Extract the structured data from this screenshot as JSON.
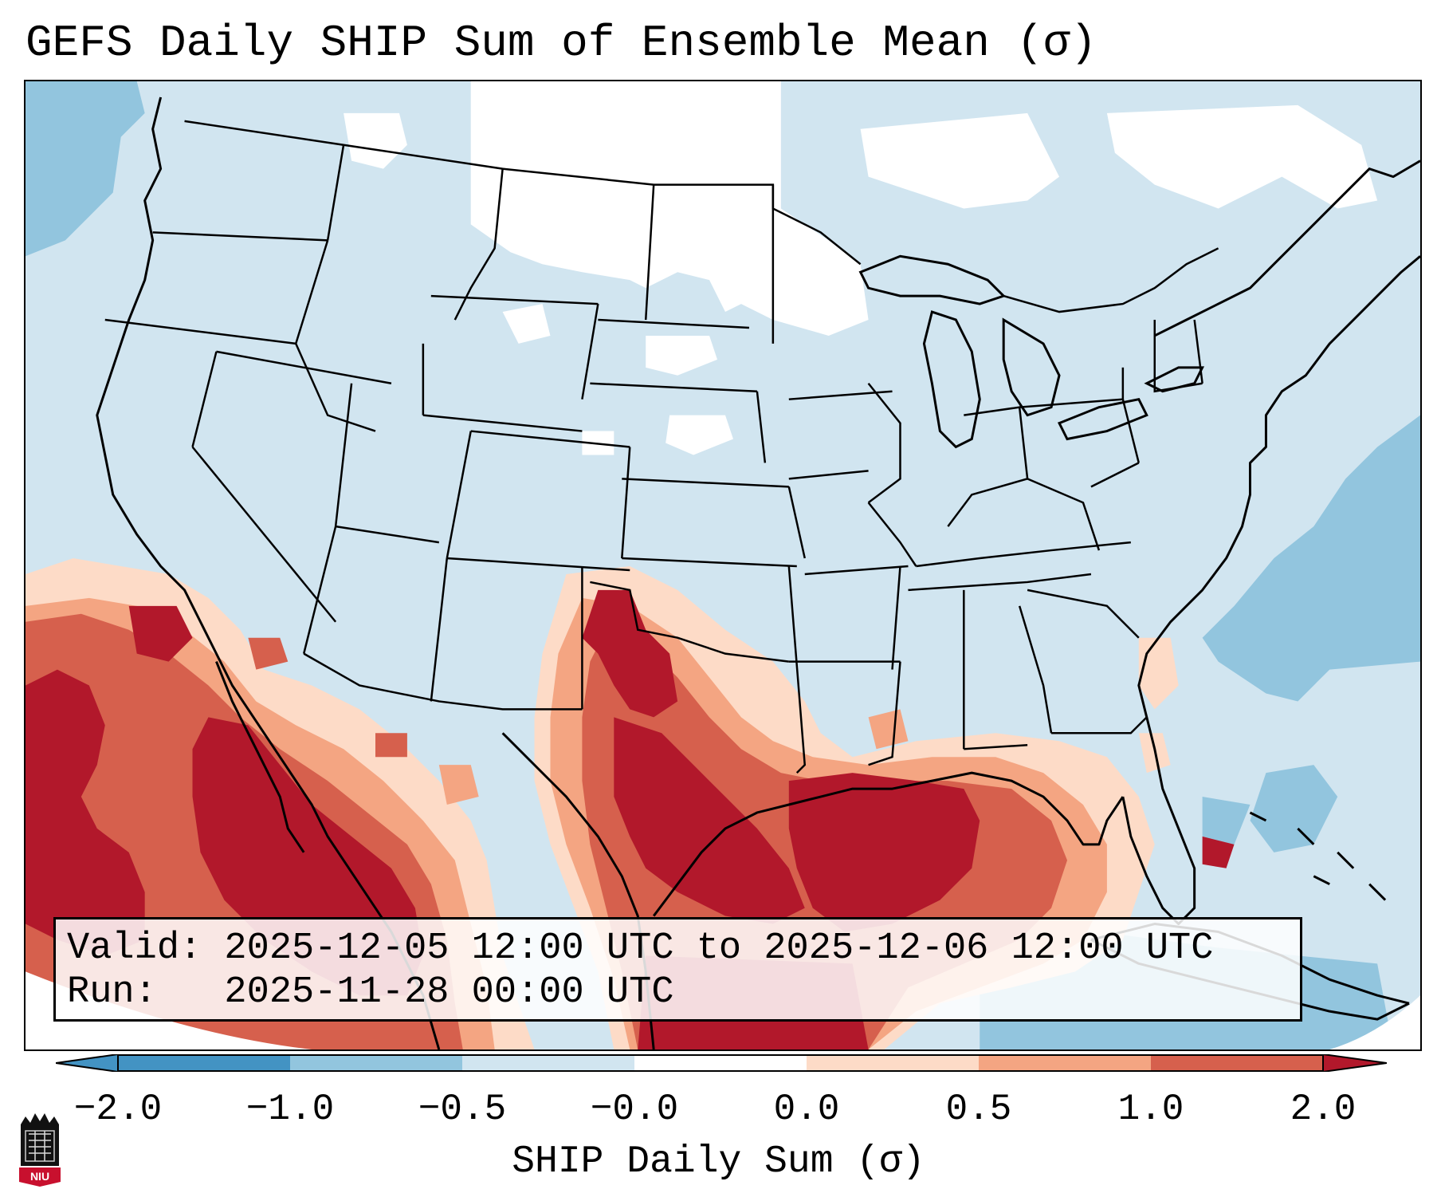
{
  "title": "GEFS Daily SHIP Sum of Ensemble Mean (σ)",
  "info": {
    "valid_line": "Valid: 2025-12-05 12:00 UTC to 2025-12-06 12:00 UTC",
    "run_line": "Run:   2025-11-28 00:00 UTC"
  },
  "colorbar": {
    "label": "SHIP Daily Sum (σ)",
    "ticks": [
      "−2.0",
      "−1.0",
      "−0.5",
      "−0.0",
      "0.0",
      "0.5",
      "1.0",
      "2.0"
    ],
    "colors": [
      "#4393c3",
      "#92c5de",
      "#d1e5f0",
      "#ffffff",
      "#fddbc7",
      "#f4a582",
      "#d6604d",
      "#b2182b"
    ],
    "extend": "both"
  },
  "logo": {
    "text": "NIU"
  },
  "map": {
    "projection": "Lambert Conformal (CONUS)",
    "region": "Contiguous United States, northern Mexico, Gulf of Mexico"
  }
}
